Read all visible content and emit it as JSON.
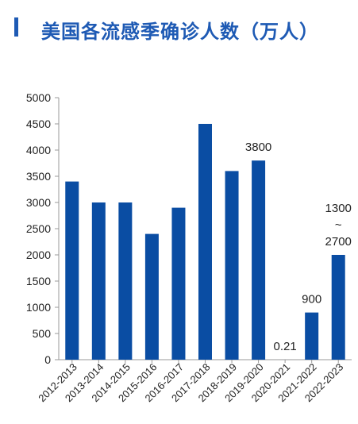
{
  "header": {
    "title": "美国各流感季确诊人数（万人）",
    "accent_color": "#1e5ab4"
  },
  "chart_data": {
    "type": "bar",
    "title": "美国各流感季确诊人数（万人）",
    "xlabel": "",
    "ylabel": "",
    "ylim": [
      0,
      5000
    ],
    "yticks": [
      0,
      500,
      1000,
      1500,
      2000,
      2500,
      3000,
      3500,
      4000,
      4500,
      5000
    ],
    "categories": [
      "2012-2013",
      "2013-2014",
      "2014-2015",
      "2015-2016",
      "2016-2017",
      "2017-2018",
      "2018-2019",
      "2019-2020",
      "2020-2021",
      "2021-2022",
      "2022-2023"
    ],
    "values": [
      3400,
      3000,
      3000,
      2400,
      2900,
      4500,
      3600,
      3800,
      0.21,
      900,
      2000
    ],
    "bar_color": "#0a4da3",
    "grid": false,
    "data_labels": [
      {
        "category": "2019-2020",
        "lines": [
          "3800"
        ]
      },
      {
        "category": "2020-2021",
        "lines": [
          "0.21"
        ]
      },
      {
        "category": "2021-2022",
        "lines": [
          "900"
        ]
      },
      {
        "category": "2022-2023",
        "lines": [
          "1300",
          "~",
          "2700"
        ]
      }
    ]
  }
}
